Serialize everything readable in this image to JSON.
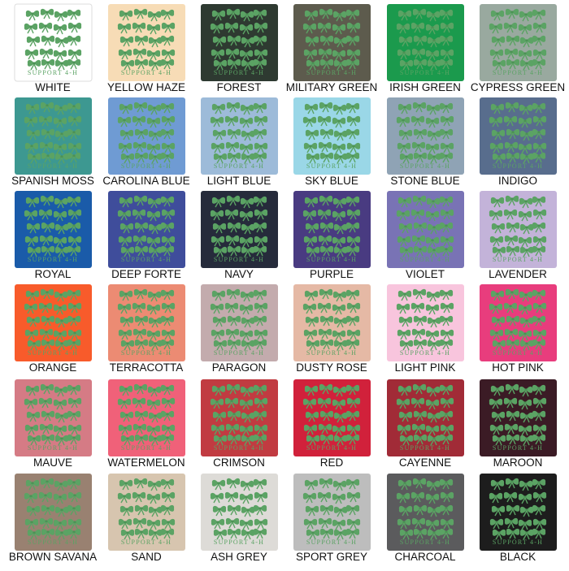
{
  "design": {
    "caption": "SUPPORT 4-H"
  },
  "swatches": [
    {
      "name": "WHITE",
      "color": "#ffffff"
    },
    {
      "name": "YELLOW HAZE",
      "color": "#f7dcb6"
    },
    {
      "name": "FOREST",
      "color": "#2e3a31"
    },
    {
      "name": "MILITARY GREEN",
      "color": "#5d5b4d"
    },
    {
      "name": "IRISH GREEN",
      "color": "#1b9a4d"
    },
    {
      "name": "CYPRESS GREEN",
      "color": "#99a99f"
    },
    {
      "name": "SPANISH MOSS",
      "color": "#3d9891"
    },
    {
      "name": "CAROLINA BLUE",
      "color": "#6f9bd3"
    },
    {
      "name": "LIGHT BLUE",
      "color": "#9dbbd9"
    },
    {
      "name": "SKY BLUE",
      "color": "#9ad7e7"
    },
    {
      "name": "STONE BLUE",
      "color": "#8fa3b5"
    },
    {
      "name": "INDIGO",
      "color": "#586d8d"
    },
    {
      "name": "ROYAL",
      "color": "#1a5ba9"
    },
    {
      "name": "DEEP FORTE",
      "color": "#3f4d9b"
    },
    {
      "name": "NAVY",
      "color": "#262b3b"
    },
    {
      "name": "PURPLE",
      "color": "#493b81"
    },
    {
      "name": "VIOLET",
      "color": "#7973b5"
    },
    {
      "name": "LAVENDER",
      "color": "#c3b3d9"
    },
    {
      "name": "ORANGE",
      "color": "#f85b2b"
    },
    {
      "name": "TERRACOTTA",
      "color": "#ec8b73"
    },
    {
      "name": "PARAGON",
      "color": "#c3abad"
    },
    {
      "name": "DUSTY ROSE",
      "color": "#e5b9a5"
    },
    {
      "name": "LIGHT PINK",
      "color": "#f8c5dd"
    },
    {
      "name": "HOT PINK",
      "color": "#e83d7d"
    },
    {
      "name": "MAUVE",
      "color": "#d57b85"
    },
    {
      "name": "WATERMELON",
      "color": "#f06179"
    },
    {
      "name": "CRIMSON",
      "color": "#c13b41"
    },
    {
      "name": "RED",
      "color": "#d1213b"
    },
    {
      "name": "CAYENNE",
      "color": "#a12b37"
    },
    {
      "name": "MAROON",
      "color": "#3b1b25"
    },
    {
      "name": "BROWN SAVANA",
      "color": "#998171"
    },
    {
      "name": "SAND",
      "color": "#d7c5af"
    },
    {
      "name": "ASH GREY",
      "color": "#dddbd7"
    },
    {
      "name": "SPORT GREY",
      "color": "#bdbdbd"
    },
    {
      "name": "CHARCOAL",
      "color": "#5b5b5d"
    },
    {
      "name": "BLACK",
      "color": "#1d1d1d"
    }
  ]
}
